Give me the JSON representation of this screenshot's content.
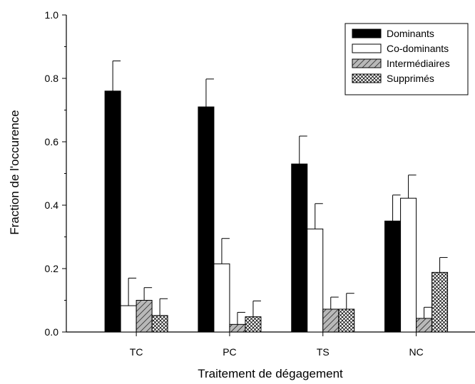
{
  "chart_data": {
    "type": "bar",
    "title": "",
    "xlabel": "Traitement de dégagement",
    "ylabel": "Fraction de l'occurence",
    "categories": [
      "TC",
      "PC",
      "TS",
      "NC"
    ],
    "ylim": [
      0,
      1.0
    ],
    "yticks": [
      "0.0",
      "0.2",
      "0.4",
      "0.6",
      "0.8",
      "1.0"
    ],
    "grid": false,
    "legend_position": "top-right",
    "error_bars": "upper",
    "series": [
      {
        "name": "Dominants",
        "pattern": "solid-black",
        "values": [
          0.76,
          0.71,
          0.53,
          0.35
        ],
        "errors": [
          0.095,
          0.088,
          0.088,
          0.082
        ]
      },
      {
        "name": "Co-dominants",
        "pattern": "white",
        "values": [
          0.083,
          0.215,
          0.325,
          0.422
        ],
        "errors": [
          0.087,
          0.08,
          0.08,
          0.073
        ]
      },
      {
        "name": "Intermédiaires",
        "pattern": "diagonal-hatch",
        "values": [
          0.1,
          0.024,
          0.072,
          0.043
        ],
        "errors": [
          0.04,
          0.038,
          0.038,
          0.035
        ]
      },
      {
        "name": "Supprimés",
        "pattern": "crosshatch",
        "values": [
          0.052,
          0.048,
          0.072,
          0.188
        ],
        "errors": [
          0.053,
          0.05,
          0.05,
          0.047
        ]
      }
    ]
  }
}
